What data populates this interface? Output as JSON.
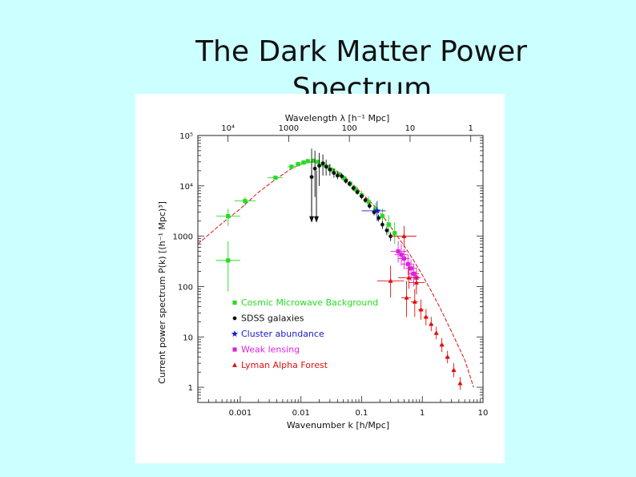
{
  "slide": {
    "title_line1": "The Dark Matter Power",
    "title_line2": "Spectrum"
  },
  "chart_data": {
    "type": "scatter",
    "xscale": "log",
    "yscale": "log",
    "xlim": [
      0.0002,
      10
    ],
    "ylim": [
      0.5,
      100000
    ],
    "xlabel": "Wavenumber k [h/Mpc]",
    "ylabel": "Current power spectrum P(k) [(h⁻¹ Mpc)³]",
    "top_axis_label": "Wavelength λ [h⁻¹ Mpc]",
    "x_ticks": [
      {
        "value": 0.001,
        "label": "0.001"
      },
      {
        "value": 0.01,
        "label": "0.01"
      },
      {
        "value": 0.1,
        "label": "0.1"
      },
      {
        "value": 1,
        "label": "1"
      },
      {
        "value": 10,
        "label": "10"
      }
    ],
    "top_ticks": [
      {
        "value": 0.000628,
        "label": "10⁴"
      },
      {
        "value": 0.00628,
        "label": "1000"
      },
      {
        "value": 0.0628,
        "label": "100"
      },
      {
        "value": 0.628,
        "label": "10"
      },
      {
        "value": 6.28,
        "label": "1"
      }
    ],
    "y_ticks": [
      {
        "value": 100000,
        "label": "10⁵"
      },
      {
        "value": 10000,
        "label": "10⁴"
      },
      {
        "value": 1000,
        "label": "1000"
      },
      {
        "value": 100,
        "label": "100"
      },
      {
        "value": 10,
        "label": "10"
      },
      {
        "value": 1,
        "label": "1"
      }
    ],
    "legend_position": "bottom-left",
    "model_curve": {
      "color": "#e01010",
      "x": [
        0.0002,
        0.0005,
        0.001,
        0.002,
        0.004,
        0.007,
        0.01,
        0.015,
        0.02,
        0.03,
        0.05,
        0.07,
        0.1,
        0.15,
        0.2,
        0.3,
        0.5,
        0.7,
        1,
        1.5,
        2,
        3,
        5,
        7
      ],
      "y": [
        700,
        1800,
        3500,
        7500,
        14000,
        22000,
        27000,
        30000,
        29000,
        24000,
        16000,
        11000,
        7200,
        4400,
        3000,
        1550,
        650,
        350,
        170,
        70,
        36,
        13,
        3.5,
        1
      ]
    },
    "series": [
      {
        "name": "Cosmic Microwave Background",
        "marker": "square",
        "color": "#22dd22",
        "points": [
          {
            "x": 0.00063,
            "y": 330,
            "xerr": [
              0.0004,
              0.001
            ],
            "yerr": [
              80,
              800
            ]
          },
          {
            "x": 0.00063,
            "y": 2500,
            "xerr": [
              0.0004,
              0.001
            ],
            "yerr": [
              1600,
              3500
            ]
          },
          {
            "x": 0.0012,
            "y": 5000,
            "xerr": [
              0.0008,
              0.0018
            ],
            "yerr": [
              4000,
              6000
            ]
          },
          {
            "x": 0.0038,
            "y": 14500,
            "xerr": [
              0.0028,
              0.005
            ],
            "yerr": [
              13000,
              16000
            ]
          },
          {
            "x": 0.007,
            "y": 24000,
            "xerr": [
              0.006,
              0.008
            ],
            "yerr": [
              22000,
              26000
            ]
          },
          {
            "x": 0.009,
            "y": 27000,
            "xerr": [
              0.008,
              0.01
            ],
            "yerr": [
              25000,
              29000
            ]
          },
          {
            "x": 0.011,
            "y": 29000,
            "xerr": [
              0.01,
              0.012
            ],
            "yerr": [
              27000,
              31000
            ]
          },
          {
            "x": 0.013,
            "y": 31000,
            "xerr": [
              0.012,
              0.014
            ],
            "yerr": [
              29000,
              33000
            ]
          },
          {
            "x": 0.016,
            "y": 31500,
            "xerr": [
              0.015,
              0.017
            ],
            "yerr": [
              29000,
              34000
            ]
          },
          {
            "x": 0.019,
            "y": 30000,
            "xerr": [
              0.018,
              0.02
            ],
            "yerr": [
              28000,
              32000
            ]
          },
          {
            "x": 0.023,
            "y": 27000,
            "xerr": [
              0.021,
              0.025
            ],
            "yerr": [
              25000,
              29000
            ]
          },
          {
            "x": 0.028,
            "y": 24000,
            "xerr": [
              0.026,
              0.03
            ],
            "yerr": [
              22000,
              26000
            ]
          },
          {
            "x": 0.034,
            "y": 20000,
            "xerr": [
              0.032,
              0.036
            ],
            "yerr": [
              18000,
              22000
            ]
          },
          {
            "x": 0.042,
            "y": 17000,
            "xerr": [
              0.039,
              0.045
            ],
            "yerr": [
              15000,
              19000
            ]
          },
          {
            "x": 0.052,
            "y": 14000,
            "xerr": [
              0.048,
              0.056
            ],
            "yerr": [
              12000,
              16000
            ]
          },
          {
            "x": 0.065,
            "y": 11000,
            "xerr": [
              0.06,
              0.07
            ],
            "yerr": [
              9500,
              12500
            ]
          },
          {
            "x": 0.08,
            "y": 8500,
            "xerr": [
              0.075,
              0.085
            ],
            "yerr": [
              7000,
              10000
            ]
          },
          {
            "x": 0.1,
            "y": 6500,
            "xerr": [
              0.093,
              0.107
            ],
            "yerr": [
              5300,
              8000
            ]
          },
          {
            "x": 0.13,
            "y": 4800,
            "xerr": [
              0.12,
              0.14
            ],
            "yerr": [
              3700,
              6200
            ]
          },
          {
            "x": 0.17,
            "y": 3500,
            "xerr": [
              0.155,
              0.185
            ],
            "yerr": [
              2600,
              4600
            ]
          },
          {
            "x": 0.22,
            "y": 2500,
            "xerr": [
              0.2,
              0.24
            ],
            "yerr": [
              1700,
              3600
            ]
          },
          {
            "x": 0.28,
            "y": 1700,
            "xerr": [
              0.25,
              0.31
            ],
            "yerr": [
              1100,
              2600
            ]
          },
          {
            "x": 0.35,
            "y": 1150,
            "xerr": [
              0.32,
              0.38
            ],
            "yerr": [
              700,
              1900
            ]
          }
        ]
      },
      {
        "name": "SDSS galaxies",
        "marker": "circle",
        "color": "#111111",
        "points": [
          {
            "x": 0.015,
            "y": 15000,
            "xerr": [
              0.014,
              0.016
            ],
            "yerr": [
              3000,
              55000
            ]
          },
          {
            "x": 0.017,
            "y": 22000,
            "xerr": [
              0.016,
              0.018
            ],
            "yerr": [
              6000,
              50000
            ]
          },
          {
            "x": 0.02,
            "y": 25000,
            "xerr": [
              0.019,
              0.021
            ],
            "yerr": [
              10000,
              45000
            ]
          },
          {
            "x": 0.023,
            "y": 28000,
            "xerr": [
              0.022,
              0.024
            ],
            "yerr": [
              16000,
              42000
            ]
          },
          {
            "x": 0.026,
            "y": 24000,
            "xerr": [
              0.025,
              0.027
            ],
            "yerr": [
              16000,
              33000
            ]
          },
          {
            "x": 0.03,
            "y": 21000,
            "xerr": [
              0.029,
              0.031
            ],
            "yerr": [
              16000,
              27000
            ]
          },
          {
            "x": 0.035,
            "y": 18000,
            "xerr": [
              0.033,
              0.037
            ],
            "yerr": [
              14500,
              22000
            ]
          },
          {
            "x": 0.04,
            "y": 16000,
            "xerr": [
              0.038,
              0.042
            ],
            "yerr": [
              13500,
              19000
            ]
          },
          {
            "x": 0.047,
            "y": 15500,
            "xerr": [
              0.044,
              0.05
            ],
            "yerr": [
              13500,
              18000
            ]
          },
          {
            "x": 0.055,
            "y": 12500,
            "xerr": [
              0.052,
              0.058
            ],
            "yerr": [
              11000,
              14000
            ]
          },
          {
            "x": 0.063,
            "y": 11000,
            "xerr": [
              0.06,
              0.066
            ],
            "yerr": [
              9800,
              12300
            ]
          },
          {
            "x": 0.073,
            "y": 9000,
            "xerr": [
              0.07,
              0.076
            ],
            "yerr": [
              8000,
              10000
            ]
          },
          {
            "x": 0.085,
            "y": 7500,
            "xerr": [
              0.081,
              0.089
            ],
            "yerr": [
              6700,
              8400
            ]
          },
          {
            "x": 0.1,
            "y": 6200,
            "xerr": [
              0.095,
              0.105
            ],
            "yerr": [
              5500,
              7000
            ]
          },
          {
            "x": 0.115,
            "y": 5200,
            "xerr": [
              0.11,
              0.12
            ],
            "yerr": [
              4600,
              5900
            ]
          },
          {
            "x": 0.135,
            "y": 4000,
            "xerr": [
              0.128,
              0.142
            ],
            "yerr": [
              3500,
              4600
            ]
          },
          {
            "x": 0.16,
            "y": 3000,
            "xerr": [
              0.152,
              0.168
            ],
            "yerr": [
              2600,
              3500
            ]
          },
          {
            "x": 0.19,
            "y": 2300,
            "xerr": [
              0.18,
              0.2
            ],
            "yerr": [
              1950,
              2700
            ]
          },
          {
            "x": 0.22,
            "y": 1700,
            "xerr": [
              0.21,
              0.23
            ],
            "yerr": [
              1400,
              2000
            ]
          },
          {
            "x": 0.26,
            "y": 1300,
            "xerr": [
              0.25,
              0.27
            ],
            "yerr": [
              1050,
              1550
            ]
          },
          {
            "x": 0.3,
            "y": 1000,
            "xerr": [
              0.29,
              0.31
            ],
            "yerr": [
              800,
              1200
            ]
          }
        ]
      },
      {
        "name": "Cluster abundance",
        "marker": "star",
        "color": "#1a1acc",
        "points": [
          {
            "x": 0.18,
            "y": 3200,
            "xerr": [
              0.1,
              0.25
            ],
            "yerr": [
              2000,
              5000
            ]
          }
        ]
      },
      {
        "name": "Weak lensing",
        "marker": "square",
        "color": "#dd22dd",
        "points": [
          {
            "x": 0.4,
            "y": 500,
            "xerr": [
              0.3,
              0.55
            ],
            "yerr": [
              300,
              800
            ]
          },
          {
            "x": 0.45,
            "y": 430,
            "xerr": [
              0.35,
              0.58
            ],
            "yerr": [
              260,
              700
            ]
          },
          {
            "x": 0.5,
            "y": 360,
            "xerr": [
              0.4,
              0.62
            ],
            "yerr": [
              220,
              560
            ]
          },
          {
            "x": 0.58,
            "y": 280,
            "xerr": [
              0.46,
              0.72
            ],
            "yerr": [
              170,
              430
            ]
          },
          {
            "x": 0.65,
            "y": 230,
            "xerr": [
              0.52,
              0.8
            ],
            "yerr": [
              130,
              350
            ]
          },
          {
            "x": 0.72,
            "y": 180,
            "xerr": [
              0.6,
              0.88
            ],
            "yerr": [
              100,
              280
            ]
          },
          {
            "x": 0.8,
            "y": 150,
            "xerr": [
              0.68,
              0.95
            ],
            "yerr": [
              85,
              240
            ]
          }
        ]
      },
      {
        "name": "Lyman Alpha Forest",
        "marker": "triangle",
        "color": "#e01010",
        "points": [
          {
            "x": 0.5,
            "y": 1000,
            "xerr": [
              0.3,
              0.8
            ],
            "yerr": [
              600,
              1600
            ]
          },
          {
            "x": 0.3,
            "y": 130,
            "xerr": [
              0.18,
              0.5
            ],
            "yerr": [
              60,
              260
            ]
          },
          {
            "x": 0.6,
            "y": 150,
            "xerr": [
              0.4,
              0.9
            ],
            "yerr": [
              90,
              250
            ]
          },
          {
            "x": 0.8,
            "y": 120,
            "xerr": [
              0.6,
              1.1
            ],
            "yerr": [
              70,
              200
            ]
          },
          {
            "x": 0.55,
            "y": 60,
            "xerr": [
              0.45,
              0.65
            ],
            "yerr": [
              25,
              130
            ]
          },
          {
            "x": 0.75,
            "y": 50,
            "xerr": [
              0.65,
              0.85
            ],
            "yerr": [
              25,
              90
            ]
          },
          {
            "x": 0.95,
            "y": 35,
            "xerr": [
              0.85,
              1.05
            ],
            "yerr": [
              22,
              55
            ]
          },
          {
            "x": 1.15,
            "y": 25,
            "xerr": [
              1.05,
              1.25
            ],
            "yerr": [
              17,
              36
            ]
          },
          {
            "x": 1.4,
            "y": 18,
            "xerr": [
              1.3,
              1.5
            ],
            "yerr": [
              13,
              25
            ]
          },
          {
            "x": 1.7,
            "y": 12,
            "xerr": [
              1.6,
              1.8
            ],
            "yerr": [
              9,
              16
            ]
          },
          {
            "x": 2.1,
            "y": 7,
            "xerr": [
              1.95,
              2.25
            ],
            "yerr": [
              5,
              9.5
            ]
          },
          {
            "x": 2.6,
            "y": 4,
            "xerr": [
              2.4,
              2.8
            ],
            "yerr": [
              3,
              5.3
            ]
          },
          {
            "x": 3.3,
            "y": 2.2,
            "xerr": [
              3.1,
              3.5
            ],
            "yerr": [
              1.6,
              3
            ]
          },
          {
            "x": 4.2,
            "y": 1.2,
            "xerr": [
              4,
              4.4
            ],
            "yerr": [
              0.9,
              1.6
            ]
          }
        ]
      }
    ],
    "upper_limit_arrows": [
      {
        "x": 0.015,
        "y_from": 20000,
        "y_to": 2000
      },
      {
        "x": 0.018,
        "y_from": 20000,
        "y_to": 2000
      }
    ]
  }
}
